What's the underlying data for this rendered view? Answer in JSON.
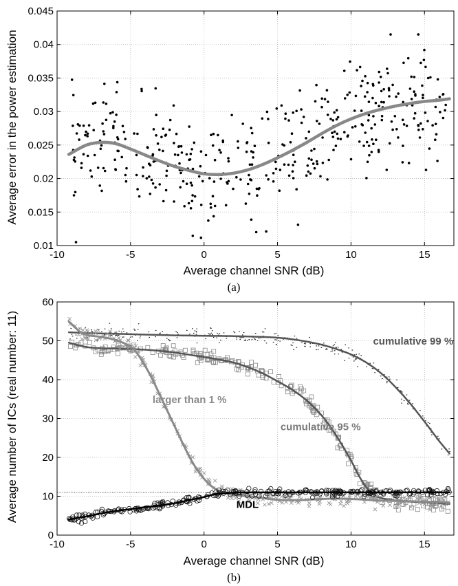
{
  "colors": {
    "trend": "#888888",
    "grid": "#b8b8b8",
    "axis": "#000000",
    "dark_series": "#555555",
    "light_series": "#8a8a8a",
    "mdl": "#000000"
  },
  "chart_data": [
    {
      "type": "scatter",
      "panel": "(a)",
      "caption": "(a)",
      "xlabel": "Average channel SNR (dB)",
      "ylabel": "Average error in the power estimation",
      "xlim": [
        -10,
        17
      ],
      "ylim": [
        0.01,
        0.045
      ],
      "xticks": [
        -10,
        -5,
        0,
        5,
        10,
        15
      ],
      "yticks": [
        0.01,
        0.015,
        0.02,
        0.025,
        0.03,
        0.035,
        0.04,
        0.045
      ],
      "xtick_labels": [
        "-10",
        "-5",
        "0",
        "5",
        "10",
        "15"
      ],
      "ytick_labels": [
        "0.01",
        "0.015",
        "0.02",
        "0.025",
        "0.03",
        "0.035",
        "0.04",
        "0.045"
      ],
      "grid": true,
      "series": [
        {
          "kind": "points",
          "description_of_distribution": "scattered dots around trend",
          "x_range": [
            -9,
            16.5
          ],
          "spread": 0.004
        },
        {
          "kind": "trend",
          "x": [
            -9.2,
            -8,
            -7,
            -6,
            -5,
            -4,
            -3,
            -2,
            -1,
            0,
            1,
            2,
            3,
            4,
            5,
            6,
            7,
            8,
            9,
            10,
            11,
            12,
            13,
            14,
            15,
            16,
            16.7
          ],
          "y": [
            0.0236,
            0.025,
            0.0254,
            0.0252,
            0.0244,
            0.0235,
            0.0226,
            0.0218,
            0.0212,
            0.0207,
            0.0206,
            0.0208,
            0.0213,
            0.0221,
            0.0231,
            0.0242,
            0.0254,
            0.0267,
            0.0279,
            0.0289,
            0.0297,
            0.0303,
            0.0308,
            0.0312,
            0.0315,
            0.0317,
            0.0319
          ]
        }
      ]
    },
    {
      "type": "line",
      "panel": "(b)",
      "caption": "(b)",
      "xlabel": "Average channel SNR (dB)",
      "ylabel": "Average number of ICs (real number: 11)",
      "xlim": [
        -10,
        17
      ],
      "ylim": [
        0,
        60
      ],
      "xticks": [
        -10,
        -5,
        0,
        5,
        10,
        15
      ],
      "yticks": [
        0,
        10,
        20,
        30,
        40,
        50,
        60
      ],
      "xtick_labels": [
        "-10",
        "-5",
        "0",
        "5",
        "10",
        "15"
      ],
      "ytick_labels": [
        "0",
        "10",
        "20",
        "30",
        "40",
        "50",
        "60"
      ],
      "grid": true,
      "reference_line": 11,
      "annotations": [
        {
          "text": "cumulative 99 %",
          "x": 11.5,
          "y": 49
        },
        {
          "text": "cumulative 95 %",
          "x": 5.2,
          "y": 27
        },
        {
          "text": "larger than 1 %",
          "x": -3.5,
          "y": 34
        },
        {
          "text": "MDL",
          "x": 2.2,
          "y": 7
        }
      ],
      "series": [
        {
          "name": "cumulative 99 %",
          "marker": "dot",
          "x": [
            -9.2,
            -8,
            -6,
            -4,
            -2,
            0,
            2,
            4,
            5,
            6,
            7,
            8,
            9,
            10,
            11,
            12,
            13,
            14,
            15,
            16,
            16.7
          ],
          "y": [
            52.2,
            52.0,
            51.8,
            51.6,
            51.4,
            51.3,
            51.2,
            51.0,
            50.8,
            50.4,
            49.8,
            49.0,
            47.9,
            46.5,
            44.5,
            41.8,
            38.2,
            34.0,
            29.2,
            24.2,
            21.0
          ]
        },
        {
          "name": "cumulative 95 %",
          "marker": "square",
          "x": [
            -9.2,
            -8,
            -7,
            -6,
            -5,
            -4,
            -3,
            -2,
            -1,
            0,
            1,
            2,
            3,
            4,
            5,
            6,
            7,
            8,
            9,
            10,
            10.5,
            11,
            11.5,
            12,
            13,
            14,
            15,
            16,
            16.7
          ],
          "y": [
            49.5,
            48.4,
            48.1,
            48.0,
            47.9,
            47.7,
            47.4,
            47.0,
            46.4,
            45.8,
            45.2,
            44.4,
            43.2,
            41.6,
            39.6,
            37.4,
            34.6,
            30.8,
            25.6,
            19.2,
            15.5,
            12.5,
            10.5,
            9.6,
            8.9,
            8.6,
            8.4,
            8.2,
            8.0
          ]
        },
        {
          "name": "larger than 1 %",
          "marker": "x",
          "x": [
            -9.2,
            -8.5,
            -8,
            -7,
            -6,
            -5,
            -4.5,
            -4,
            -3.5,
            -3,
            -2.5,
            -2,
            -1.5,
            -1,
            -0.5,
            0,
            0.5,
            1,
            1.5,
            2,
            3,
            4,
            5,
            6,
            7,
            8,
            9,
            10,
            11,
            12,
            13,
            14,
            15,
            16,
            16.7
          ],
          "y": [
            55.0,
            52.5,
            51.5,
            51.0,
            50.2,
            48.5,
            46.5,
            43.5,
            40.0,
            36.0,
            32.0,
            28.0,
            24.0,
            20.2,
            17.0,
            14.5,
            12.6,
            11.4,
            10.7,
            10.3,
            10.0,
            9.5,
            9.1,
            9.0,
            9.1,
            9.3,
            9.4,
            9.3,
            9.1,
            8.9,
            8.8,
            8.7,
            8.6,
            8.5,
            8.3
          ]
        },
        {
          "name": "MDL",
          "marker": "circle",
          "x": [
            -9.2,
            -8,
            -7,
            -6,
            -5,
            -4,
            -3,
            -2,
            -1,
            0,
            0.5,
            1,
            1.5,
            2,
            3,
            4,
            5,
            6,
            7,
            8,
            9,
            10,
            11,
            12,
            13,
            14,
            15,
            16,
            16.7
          ],
          "y": [
            4.0,
            4.8,
            5.6,
            6.2,
            6.7,
            7.2,
            7.6,
            8.2,
            9.0,
            9.8,
            10.3,
            10.6,
            10.8,
            10.9,
            11.0,
            11.0,
            11.0,
            11.0,
            11.0,
            11.0,
            11.0,
            11.0,
            11.0,
            11.0,
            11.0,
            11.0,
            11.0,
            11.0,
            11.0
          ]
        }
      ]
    }
  ]
}
